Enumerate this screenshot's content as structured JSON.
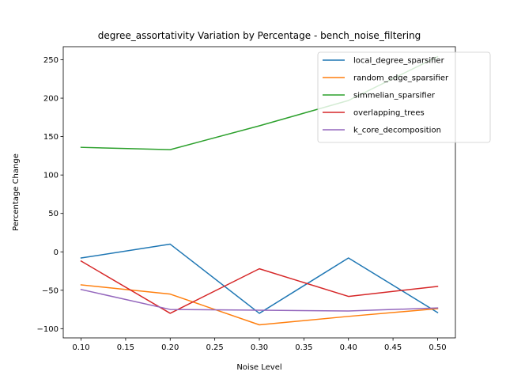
{
  "chart_data": {
    "type": "line",
    "title": "degree_assortativity Variation by Percentage - bench_noise_filtering",
    "xlabel": "Noise Level",
    "ylabel": "Percentage Change",
    "x": [
      0.1,
      0.2,
      0.3,
      0.4,
      0.5
    ],
    "xlim": [
      0.08,
      0.52
    ],
    "ylim": [
      -112,
      267
    ],
    "xticks": [
      "0.10",
      "0.15",
      "0.20",
      "0.25",
      "0.30",
      "0.35",
      "0.40",
      "0.45",
      "0.50"
    ],
    "xtick_values": [
      0.1,
      0.15,
      0.2,
      0.25,
      0.3,
      0.35,
      0.4,
      0.45,
      0.5
    ],
    "yticks": [
      "−100",
      "−50",
      "0",
      "50",
      "100",
      "150",
      "200",
      "250"
    ],
    "ytick_values": [
      -100,
      -50,
      0,
      50,
      100,
      150,
      200,
      250
    ],
    "grid": false,
    "legend_position": "top-right",
    "series": [
      {
        "name": "local_degree_sparsifier",
        "color": "#1f77b4",
        "values": [
          -8,
          10,
          -80,
          -8,
          -79
        ]
      },
      {
        "name": "random_edge_sparsifier",
        "color": "#ff7f0e",
        "values": [
          -43,
          -55,
          -95,
          -84,
          -74
        ]
      },
      {
        "name": "simmelian_sparsifier",
        "color": "#2ca02c",
        "values": [
          136,
          133,
          164,
          197,
          254
        ]
      },
      {
        "name": "overlapping_trees",
        "color": "#d62728",
        "values": [
          -12,
          -80,
          -22,
          -58,
          -45
        ]
      },
      {
        "name": "k_core_decomposition",
        "color": "#9467bd",
        "values": [
          -49,
          -75,
          -76,
          -77,
          -73
        ]
      }
    ]
  }
}
